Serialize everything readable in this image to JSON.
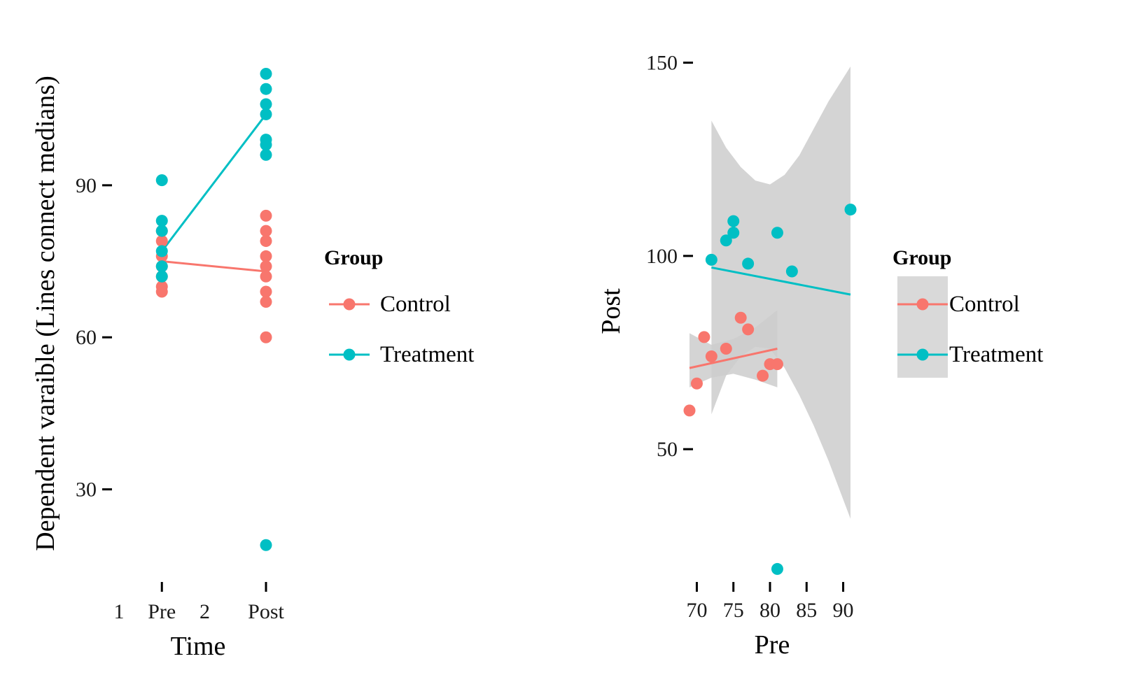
{
  "colors": {
    "control": "#F8766D",
    "treatment": "#00BFC4",
    "ribbon": "#cccccc",
    "legend_key_bg": "#d9d9d9"
  },
  "chart_data": [
    {
      "type": "scatter",
      "xlabel": "Time",
      "ylabel": "Dependent varaible (Lines connect medians)",
      "x_ticks": [
        {
          "x": 1.0,
          "label": "1"
        },
        {
          "x": 1.35,
          "label": "Pre"
        },
        {
          "x": 1.7,
          "label": "2"
        },
        {
          "x": 2.2,
          "label": "Post"
        }
      ],
      "x_tick_marks": [
        1.35,
        2.2
      ],
      "xlim": [
        0.6,
        2.6
      ],
      "y_ticks": [
        30,
        60,
        90
      ],
      "ylim": [
        12,
        118
      ],
      "series": [
        {
          "name": "Control",
          "color": "#F8766D",
          "points": [
            {
              "x": 1,
              "y": 81
            },
            {
              "x": 1,
              "y": 79
            },
            {
              "x": 1,
              "y": 76
            },
            {
              "x": 1,
              "y": 74
            },
            {
              "x": 1,
              "y": 72
            },
            {
              "x": 1,
              "y": 70
            },
            {
              "x": 1,
              "y": 69
            },
            {
              "x": 2,
              "y": 84
            },
            {
              "x": 2,
              "y": 81
            },
            {
              "x": 2,
              "y": 79
            },
            {
              "x": 2,
              "y": 76
            },
            {
              "x": 2,
              "y": 74
            },
            {
              "x": 2,
              "y": 72
            },
            {
              "x": 2,
              "y": 69
            },
            {
              "x": 2,
              "y": 67
            },
            {
              "x": 2,
              "y": 60
            }
          ],
          "median_line": [
            {
              "x": 1,
              "y": 75
            },
            {
              "x": 2,
              "y": 73
            }
          ]
        },
        {
          "name": "Treatment",
          "color": "#00BFC4",
          "points": [
            {
              "x": 1,
              "y": 91
            },
            {
              "x": 1,
              "y": 83
            },
            {
              "x": 1,
              "y": 81
            },
            {
              "x": 1,
              "y": 77
            },
            {
              "x": 1,
              "y": 74
            },
            {
              "x": 1,
              "y": 72
            },
            {
              "x": 2,
              "y": 112
            },
            {
              "x": 2,
              "y": 109
            },
            {
              "x": 2,
              "y": 106
            },
            {
              "x": 2,
              "y": 104
            },
            {
              "x": 2,
              "y": 99
            },
            {
              "x": 2,
              "y": 98
            },
            {
              "x": 2,
              "y": 96
            },
            {
              "x": 2,
              "y": 19
            }
          ],
          "median_line": [
            {
              "x": 1,
              "y": 77
            },
            {
              "x": 2,
              "y": 104
            }
          ]
        }
      ],
      "legend": {
        "title": "Group",
        "entries": [
          "Control",
          "Treatment"
        ],
        "position": "right"
      },
      "grid": false
    },
    {
      "type": "scatter",
      "xlabel": "Pre",
      "ylabel": "Post",
      "x_ticks": [
        70,
        75,
        80,
        85,
        90
      ],
      "xlim": [
        69,
        91
      ],
      "y_ticks": [
        50,
        100,
        150
      ],
      "ylim": [
        16,
        155
      ],
      "series": [
        {
          "name": "Control",
          "color": "#F8766D",
          "points": [
            {
              "x": 69,
              "y": 60
            },
            {
              "x": 70,
              "y": 67
            },
            {
              "x": 71,
              "y": 79
            },
            {
              "x": 72,
              "y": 74
            },
            {
              "x": 74,
              "y": 76
            },
            {
              "x": 76,
              "y": 84
            },
            {
              "x": 77,
              "y": 81
            },
            {
              "x": 79,
              "y": 69
            },
            {
              "x": 80,
              "y": 72
            },
            {
              "x": 81,
              "y": 72
            }
          ],
          "fit": {
            "x0": 69,
            "y0": 71,
            "x1": 81,
            "y1": 76
          },
          "ribbon": [
            {
              "x": 69,
              "lo": 66,
              "hi": 80
            },
            {
              "x": 72,
              "lo": 68.5,
              "hi": 77
            },
            {
              "x": 75,
              "lo": 69.5,
              "hi": 78.5
            },
            {
              "x": 78,
              "lo": 68,
              "hi": 81.5
            },
            {
              "x": 81,
              "lo": 66,
              "hi": 86
            }
          ]
        },
        {
          "name": "Treatment",
          "color": "#00BFC4",
          "points": [
            {
              "x": 72,
              "y": 99
            },
            {
              "x": 74,
              "y": 104
            },
            {
              "x": 75,
              "y": 109
            },
            {
              "x": 75,
              "y": 106
            },
            {
              "x": 77,
              "y": 98
            },
            {
              "x": 81,
              "y": 106
            },
            {
              "x": 83,
              "y": 96
            },
            {
              "x": 91,
              "y": 112
            },
            {
              "x": 81,
              "y": 19
            }
          ],
          "fit": {
            "x0": 72,
            "y0": 97,
            "x1": 91,
            "y1": 90
          },
          "ribbon": [
            {
              "x": 72,
              "lo": 59,
              "hi": 135
            },
            {
              "x": 74,
              "lo": 69,
              "hi": 128
            },
            {
              "x": 76,
              "lo": 74,
              "hi": 123
            },
            {
              "x": 78,
              "lo": 76.5,
              "hi": 119.5
            },
            {
              "x": 80,
              "lo": 76,
              "hi": 118.5
            },
            {
              "x": 82,
              "lo": 71,
              "hi": 121
            },
            {
              "x": 84,
              "lo": 64,
              "hi": 126
            },
            {
              "x": 86,
              "lo": 56,
              "hi": 133
            },
            {
              "x": 88,
              "lo": 47,
              "hi": 140
            },
            {
              "x": 91,
              "lo": 32,
              "hi": 149
            }
          ]
        }
      ],
      "legend": {
        "title": "Group",
        "entries": [
          "Control",
          "Treatment"
        ],
        "position": "right"
      },
      "grid": false
    }
  ]
}
